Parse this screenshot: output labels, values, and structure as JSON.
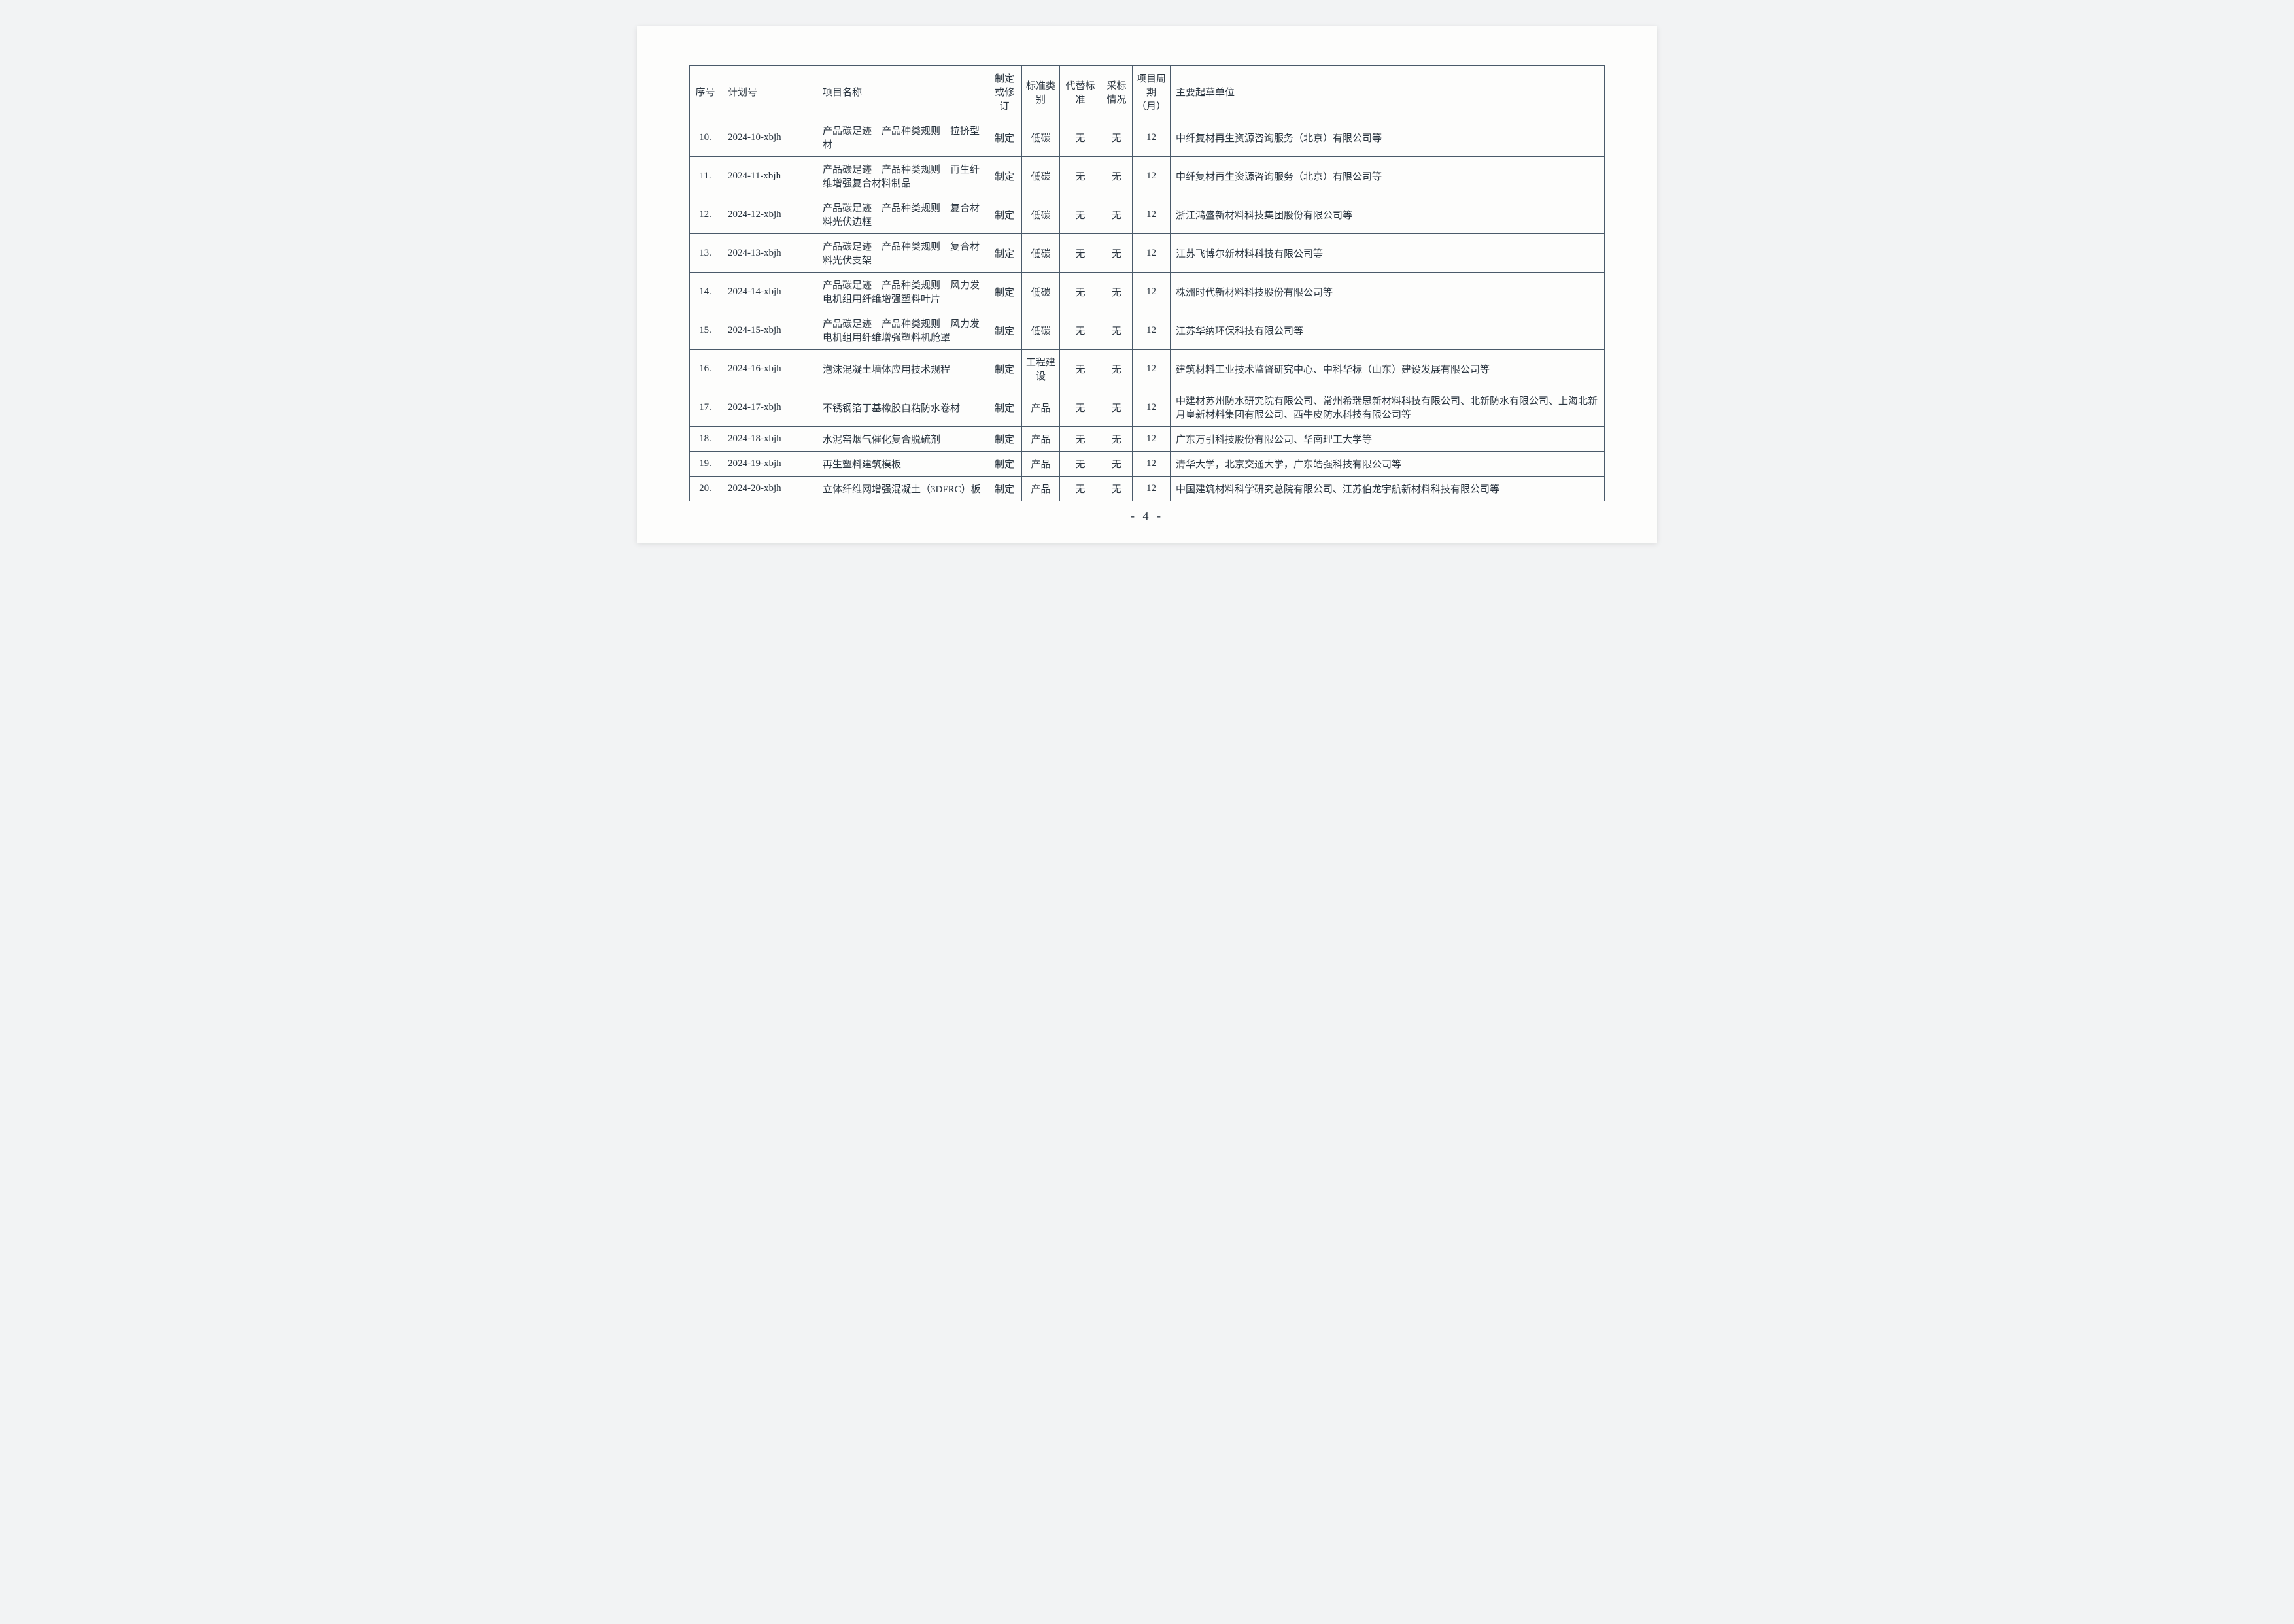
{
  "headers": {
    "seq": "序号",
    "plan": "计划号",
    "name": "项目名称",
    "rev": "制定或修订",
    "std": "标准类别",
    "rep": "代替标准",
    "sta": "采标情况",
    "per": "项目周期（月）",
    "org": "主要起草单位"
  },
  "rows": [
    {
      "seq": "10.",
      "plan": "2024-10-xbjh",
      "name": "产品碳足迹　产品种类规则　拉挤型材",
      "rev": "制定",
      "std": "低碳",
      "rep": "无",
      "sta": "无",
      "per": "12",
      "org": "中纤复材再生资源咨询服务（北京）有限公司等"
    },
    {
      "seq": "11.",
      "plan": "2024-11-xbjh",
      "name": "产品碳足迹　产品种类规则　再生纤维增强复合材料制品",
      "rev": "制定",
      "std": "低碳",
      "rep": "无",
      "sta": "无",
      "per": "12",
      "org": "中纤复材再生资源咨询服务（北京）有限公司等"
    },
    {
      "seq": "12.",
      "plan": "2024-12-xbjh",
      "name": "产品碳足迹　产品种类规则　复合材料光伏边框",
      "rev": "制定",
      "std": "低碳",
      "rep": "无",
      "sta": "无",
      "per": "12",
      "org": "浙江鸿盛新材料科技集团股份有限公司等"
    },
    {
      "seq": "13.",
      "plan": "2024-13-xbjh",
      "name": "产品碳足迹　产品种类规则　复合材料光伏支架",
      "rev": "制定",
      "std": "低碳",
      "rep": "无",
      "sta": "无",
      "per": "12",
      "org": "江苏飞博尔新材料科技有限公司等"
    },
    {
      "seq": "14.",
      "plan": "2024-14-xbjh",
      "name": "产品碳足迹　产品种类规则　风力发电机组用纤维增强塑料叶片",
      "rev": "制定",
      "std": "低碳",
      "rep": "无",
      "sta": "无",
      "per": "12",
      "org": "株洲时代新材料科技股份有限公司等"
    },
    {
      "seq": "15.",
      "plan": "2024-15-xbjh",
      "name": "产品碳足迹　产品种类规则　风力发电机组用纤维增强塑料机舱罩",
      "rev": "制定",
      "std": "低碳",
      "rep": "无",
      "sta": "无",
      "per": "12",
      "org": "江苏华纳环保科技有限公司等"
    },
    {
      "seq": "16.",
      "plan": "2024-16-xbjh",
      "name": "泡沫混凝土墙体应用技术规程",
      "rev": "制定",
      "std": "工程建设",
      "rep": "无",
      "sta": "无",
      "per": "12",
      "org": "建筑材料工业技术监督研究中心、中科华标（山东）建设发展有限公司等"
    },
    {
      "seq": "17.",
      "plan": "2024-17-xbjh",
      "name": "不锈钢箔丁基橡胶自粘防水卷材",
      "rev": "制定",
      "std": "产品",
      "rep": "无",
      "sta": "无",
      "per": "12",
      "org": "中建材苏州防水研究院有限公司、常州希瑞思新材料科技有限公司、北新防水有限公司、上海北新月皇新材料集团有限公司、西牛皮防水科技有限公司等"
    },
    {
      "seq": "18.",
      "plan": "2024-18-xbjh",
      "name": "水泥窑烟气催化复合脱硫剂",
      "rev": "制定",
      "std": "产品",
      "rep": "无",
      "sta": "无",
      "per": "12",
      "org": "广东万引科技股份有限公司、华南理工大学等"
    },
    {
      "seq": "19.",
      "plan": "2024-19-xbjh",
      "name": "再生塑料建筑模板",
      "rev": "制定",
      "std": "产品",
      "rep": "无",
      "sta": "无",
      "per": "12",
      "org": "清华大学，北京交通大学，广东皓强科技有限公司等"
    },
    {
      "seq": "20.",
      "plan": "2024-20-xbjh",
      "name": "立体纤维网增强混凝土（3DFRC）板",
      "rev": "制定",
      "std": "产品",
      "rep": "无",
      "sta": "无",
      "per": "12",
      "org": "中国建筑材料科学研究总院有限公司、江苏伯龙宇航新材料科技有限公司等"
    }
  ],
  "pageNumber": "- 4 -",
  "styling": {
    "background_color": "#f2f3f4",
    "page_color": "#fdfdfc",
    "border_color": "#4a5a6a",
    "text_color": "#2a3540",
    "font_family": "SimSun",
    "cell_fontsize": 15,
    "pagenum_fontsize": 18
  }
}
